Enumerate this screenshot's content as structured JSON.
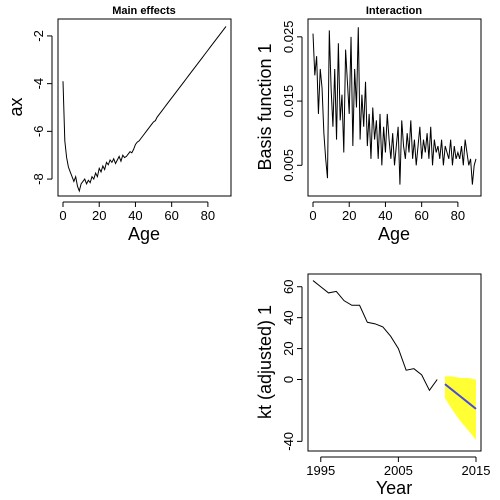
{
  "chart_data": [
    {
      "type": "line",
      "title": "Main effects",
      "xlabel": "Age",
      "ylabel": "ax",
      "xlim": [
        0,
        90
      ],
      "ylim": [
        -8.5,
        -1.5
      ],
      "xticks": [
        "0",
        "20",
        "40",
        "60",
        "80"
      ],
      "yticks": [
        "-8",
        "-6",
        "-4",
        "-2"
      ],
      "grid": false,
      "x": [
        0,
        1,
        2,
        3,
        4,
        5,
        6,
        7,
        8,
        9,
        10,
        11,
        12,
        13,
        14,
        15,
        16,
        17,
        18,
        19,
        20,
        21,
        22,
        23,
        24,
        25,
        26,
        27,
        28,
        29,
        30,
        31,
        32,
        33,
        34,
        35,
        36,
        37,
        38,
        39,
        40,
        41,
        42,
        43,
        44,
        45,
        46,
        47,
        48,
        49,
        50,
        51,
        52,
        53,
        54,
        55,
        56,
        57,
        58,
        59,
        60,
        61,
        62,
        63,
        64,
        65,
        66,
        67,
        68,
        69,
        70,
        71,
        72,
        73,
        74,
        75,
        76,
        77,
        78,
        79,
        80,
        81,
        82,
        83,
        84,
        85,
        86,
        87,
        88,
        89,
        90
      ],
      "values": [
        -3.9,
        -6.4,
        -7.1,
        -7.5,
        -7.7,
        -7.9,
        -8.1,
        -7.9,
        -8.3,
        -8.5,
        -8.2,
        -8.1,
        -8.0,
        -8.2,
        -8.05,
        -8.15,
        -7.9,
        -8.0,
        -7.75,
        -7.9,
        -7.55,
        -7.7,
        -7.45,
        -7.6,
        -7.3,
        -7.4,
        -7.2,
        -7.3,
        -7.15,
        -7.35,
        -7.2,
        -7.05,
        -7.25,
        -7.0,
        -7.1,
        -7.05,
        -6.95,
        -6.85,
        -6.9,
        -6.75,
        -6.55,
        -6.45,
        -6.4,
        -6.3,
        -6.2,
        -6.1,
        -6.0,
        -5.9,
        -5.8,
        -5.7,
        -5.6,
        -5.55,
        -5.4,
        -5.3,
        -5.2,
        -5.1,
        -5.0,
        -4.9,
        -4.8,
        -4.7,
        -4.6,
        -4.5,
        -4.4,
        -4.3,
        -4.2,
        -4.1,
        -4.0,
        -3.9,
        -3.8,
        -3.7,
        -3.6,
        -3.5,
        -3.4,
        -3.3,
        -3.2,
        -3.1,
        -3.0,
        -2.9,
        -2.8,
        -2.7,
        -2.6,
        -2.5,
        -2.4,
        -2.3,
        -2.2,
        -2.1,
        -2.0,
        -1.9,
        -1.8,
        -1.7,
        -1.6
      ]
    },
    {
      "type": "line",
      "title": "Interaction",
      "xlabel": "Age",
      "ylabel": "Basis function 1",
      "xlim": [
        0,
        90
      ],
      "ylim": [
        0.001,
        0.027
      ],
      "xticks": [
        "0",
        "20",
        "40",
        "60",
        "80"
      ],
      "yticks": [
        "0.005",
        "0.015",
        "0.025"
      ],
      "grid": false,
      "x": [
        0,
        1,
        2,
        3,
        4,
        5,
        6,
        7,
        8,
        9,
        10,
        11,
        12,
        13,
        14,
        15,
        16,
        17,
        18,
        19,
        20,
        21,
        22,
        23,
        24,
        25,
        26,
        27,
        28,
        29,
        30,
        31,
        32,
        33,
        34,
        35,
        36,
        37,
        38,
        39,
        40,
        41,
        42,
        43,
        44,
        45,
        46,
        47,
        48,
        49,
        50,
        51,
        52,
        53,
        54,
        55,
        56,
        57,
        58,
        59,
        60,
        61,
        62,
        63,
        64,
        65,
        66,
        67,
        68,
        69,
        70,
        71,
        72,
        73,
        74,
        75,
        76,
        77,
        78,
        79,
        80,
        81,
        82,
        83,
        84,
        85,
        86,
        87,
        88,
        89,
        90
      ],
      "values": [
        0.0255,
        0.019,
        0.022,
        0.013,
        0.02,
        0.017,
        0.01,
        0.006,
        0.003,
        0.026,
        0.017,
        0.011,
        0.02,
        0.009,
        0.024,
        0.012,
        0.016,
        0.007,
        0.023,
        0.018,
        0.013,
        0.025,
        0.008,
        0.02,
        0.014,
        0.0265,
        0.009,
        0.016,
        0.011,
        0.018,
        0.008,
        0.013,
        0.006,
        0.014,
        0.009,
        0.012,
        0.006,
        0.013,
        0.005,
        0.011,
        0.007,
        0.013,
        0.009,
        0.006,
        0.01,
        0.005,
        0.008,
        0.011,
        0.002,
        0.012,
        0.008,
        0.006,
        0.01,
        0.007,
        0.012,
        0.006,
        0.009,
        0.005,
        0.008,
        0.011,
        0.006,
        0.009,
        0.007,
        0.01,
        0.006,
        0.011,
        0.005,
        0.009,
        0.007,
        0.008,
        0.006,
        0.009,
        0.005,
        0.008,
        0.007,
        0.006,
        0.009,
        0.005,
        0.008,
        0.006,
        0.007,
        0.006,
        0.008,
        0.005,
        0.009,
        0.007,
        0.005,
        0.006,
        0.002,
        0.005,
        0.006
      ]
    },
    {
      "type": "line",
      "title": "",
      "xlabel": "Year",
      "ylabel": "kt (adjusted) 1",
      "xlim": [
        1994,
        2015
      ],
      "ylim": [
        -43,
        65
      ],
      "xticks": [
        "1995",
        "2005",
        "2015"
      ],
      "yticks": [
        "-40",
        "0",
        "20",
        "40",
        "60"
      ],
      "grid": false,
      "series": [
        {
          "x": [
            1994,
            1995,
            1996,
            1997,
            1998,
            1999,
            2000,
            2001,
            2002,
            2003,
            2004,
            2005,
            2006,
            2007,
            2008,
            2009,
            2010
          ],
          "values": [
            64,
            60,
            56,
            57,
            51,
            48,
            48,
            37,
            36,
            34,
            28,
            20,
            6,
            7,
            3,
            -7,
            0
          ],
          "color": "#000000"
        },
        {
          "x": [
            2011,
            2012,
            2013,
            2014,
            2015
          ],
          "values": [
            -3,
            -7,
            -11,
            -15,
            -19
          ],
          "color": "#4a4ae0"
        }
      ],
      "interval": {
        "x": [
          2011,
          2012,
          2013,
          2014,
          2015
        ],
        "lower": [
          -12,
          -20,
          -27,
          -33,
          -39
        ],
        "upper": [
          2,
          2,
          1,
          1,
          0
        ],
        "color": "#ffff33"
      }
    }
  ]
}
